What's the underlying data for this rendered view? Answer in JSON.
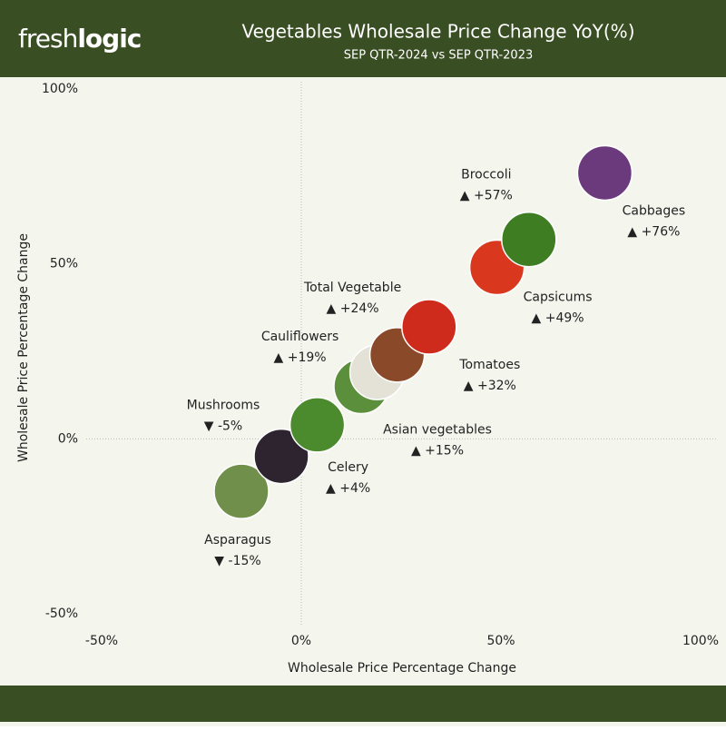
{
  "logo_light": "fresh",
  "logo_bold": "logic",
  "chart_data": {
    "type": "scatter",
    "title": "Vegetables Wholesale Price Change YoY(%)",
    "subtitle": "SEP QTR-2024 vs SEP QTR-2023",
    "x_label": "Wholesale Price Percentage Change",
    "y_label": "Wholesale Price Percentage Change",
    "xlim": [
      -50,
      100
    ],
    "ylim": [
      -50,
      100
    ],
    "xticks": [
      {
        "value": -50,
        "label": "-50%"
      },
      {
        "value": 0,
        "label": "0%"
      },
      {
        "value": 50,
        "label": "50%"
      },
      {
        "value": 100,
        "label": "100%"
      }
    ],
    "yticks": [
      {
        "value": -50,
        "label": "-50%"
      },
      {
        "value": 0,
        "label": "0%"
      },
      {
        "value": 50,
        "label": "50%"
      },
      {
        "value": 100,
        "label": "100%"
      }
    ],
    "points": [
      {
        "name": "Asparagus",
        "x": -15,
        "y": -15,
        "value_label": "▼ -15%",
        "color": "#6f8f4a"
      },
      {
        "name": "Mushrooms",
        "x": -5,
        "y": -5,
        "value_label": "▼ -5%",
        "color": "#2e2430"
      },
      {
        "name": "Celery",
        "x": 4,
        "y": 4,
        "value_label": "▲ +4%",
        "color": "#4c8a2e"
      },
      {
        "name": "Asian vegetables",
        "x": 15,
        "y": 15,
        "value_label": "▲ +15%",
        "color": "#5c8f3c"
      },
      {
        "name": "Cauliflowers",
        "x": 19,
        "y": 19,
        "value_label": "▲ +19%",
        "color": "#e4e1d6"
      },
      {
        "name": "Total Vegetable",
        "x": 24,
        "y": 24,
        "value_label": "▲ +24%",
        "color": "#8a4a2a"
      },
      {
        "name": "Tomatoes",
        "x": 32,
        "y": 32,
        "value_label": "▲ +32%",
        "color": "#cf2b1c"
      },
      {
        "name": "Capsicums",
        "x": 49,
        "y": 49,
        "value_label": "▲ +49%",
        "color": "#d9381e"
      },
      {
        "name": "Broccoli",
        "x": 57,
        "y": 57,
        "value_label": "▲ +57%",
        "color": "#3e7d22"
      },
      {
        "name": "Cabbages",
        "x": 76,
        "y": 76,
        "value_label": "▲ +76%",
        "color": "#6b3a7d"
      }
    ]
  }
}
